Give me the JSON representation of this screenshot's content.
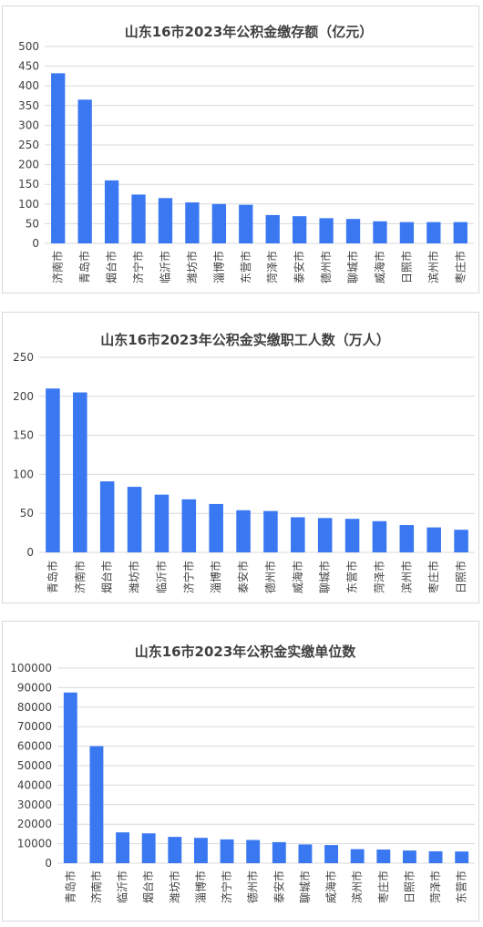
{
  "style": {
    "bar_color": "#3a78f2",
    "grid_color": "#d9d9d9",
    "text_color": "#404040"
  },
  "chart_data": [
    {
      "type": "bar",
      "title": "山东16市2023年公积金缴存额（亿元）",
      "categories": [
        "济南市",
        "青岛市",
        "烟台市",
        "济宁市",
        "临沂市",
        "潍坊市",
        "淄博市",
        "东营市",
        "菏泽市",
        "泰安市",
        "德州市",
        "聊城市",
        "威海市",
        "日照市",
        "滨州市",
        "枣庄市"
      ],
      "values": [
        432,
        365,
        160,
        124,
        115,
        104,
        100,
        98,
        72,
        69,
        64,
        62,
        56,
        54,
        54,
        54
      ],
      "ylim": [
        0,
        500
      ],
      "yticks": [
        "0",
        "50",
        "100",
        "150",
        "200",
        "250",
        "300",
        "350",
        "400",
        "450",
        "500"
      ],
      "grid": true
    },
    {
      "type": "bar",
      "title": "山东16市2023年公积金实缴职工人数（万人）",
      "categories": [
        "青岛市",
        "济南市",
        "烟台市",
        "潍坊市",
        "临沂市",
        "济宁市",
        "淄博市",
        "泰安市",
        "德州市",
        "威海市",
        "聊城市",
        "东营市",
        "菏泽市",
        "滨州市",
        "枣庄市",
        "日照市"
      ],
      "values": [
        210,
        205,
        91,
        84,
        74,
        68,
        62,
        54,
        53,
        45,
        44,
        43,
        40,
        35,
        32,
        29
      ],
      "ylim": [
        0,
        250
      ],
      "yticks": [
        "0",
        "50",
        "100",
        "150",
        "200",
        "250"
      ],
      "grid": true
    },
    {
      "type": "bar",
      "title": "山东16市2023年公积金实缴单位数",
      "categories": [
        "青岛市",
        "济南市",
        "临沂市",
        "烟台市",
        "潍坊市",
        "淄博市",
        "济宁市",
        "德州市",
        "泰安市",
        "聊城市",
        "威海市",
        "滨州市",
        "枣庄市",
        "日照市",
        "菏泽市",
        "东营市"
      ],
      "values": [
        87500,
        60000,
        15800,
        15300,
        13500,
        13000,
        12200,
        11900,
        10800,
        9600,
        9300,
        7200,
        7000,
        6500,
        6100,
        6000
      ],
      "ylim": [
        0,
        100000
      ],
      "yticks": [
        "0",
        "10000",
        "20000",
        "30000",
        "40000",
        "50000",
        "60000",
        "70000",
        "80000",
        "90000",
        "100000"
      ],
      "grid": true
    }
  ]
}
